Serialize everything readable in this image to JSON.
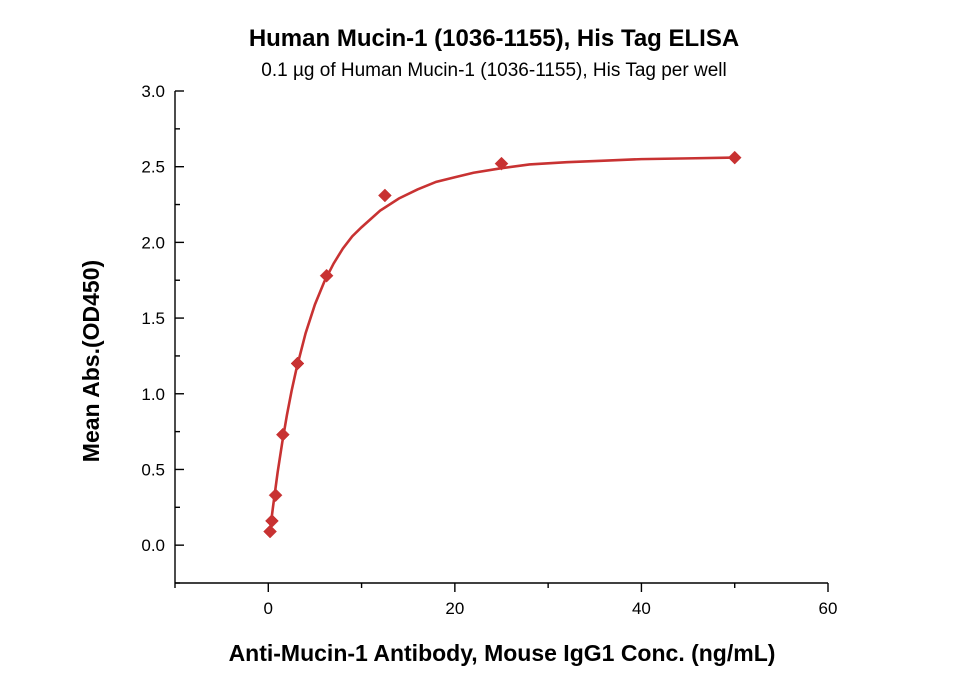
{
  "chart_data": {
    "type": "scatter",
    "title": "Human Mucin-1 (1036-1155), His Tag ELISA",
    "subtitle": "0.1 µg of Human Mucin-1 (1036-1155), His Tag per well",
    "xlabel": "Anti-Mucin-1 Antibody, Mouse IgG1 Conc. (ng/mL)",
    "ylabel": "Mean Abs.(OD450)",
    "xlim": [
      -10,
      60
    ],
    "ylim": [
      -0.25,
      3.0
    ],
    "x_ticks": [
      0,
      20,
      40,
      60
    ],
    "x_tick_labels": [
      "0",
      "20",
      "40",
      "60"
    ],
    "y_ticks": [
      0.0,
      0.5,
      1.0,
      1.5,
      2.0,
      2.5,
      3.0
    ],
    "y_tick_labels": [
      "0.0",
      "0.5",
      "1.0",
      "1.5",
      "2.0",
      "2.5",
      "3.0"
    ],
    "grid": false,
    "series": [
      {
        "marker": "diamond",
        "color": "#c83232",
        "x": [
          0.195,
          0.39,
          0.78,
          1.56,
          3.13,
          6.25,
          12.5,
          25,
          50
        ],
        "y": [
          0.09,
          0.16,
          0.33,
          0.73,
          1.2,
          1.78,
          2.31,
          2.52,
          2.56
        ],
        "fit": {
          "type": "curve",
          "color": "#c83232",
          "x": [
            0.195,
            0.5,
            1,
            1.5,
            2,
            2.5,
            3,
            4,
            5,
            6,
            7,
            8,
            9,
            10,
            12,
            14,
            16,
            18,
            20,
            22,
            25,
            28,
            32,
            36,
            40,
            45,
            50
          ],
          "y": [
            0.1,
            0.25,
            0.48,
            0.68,
            0.86,
            1.02,
            1.16,
            1.4,
            1.59,
            1.74,
            1.86,
            1.96,
            2.04,
            2.1,
            2.21,
            2.29,
            2.35,
            2.4,
            2.43,
            2.46,
            2.49,
            2.515,
            2.53,
            2.54,
            2.55,
            2.555,
            2.56
          ]
        }
      }
    ]
  }
}
